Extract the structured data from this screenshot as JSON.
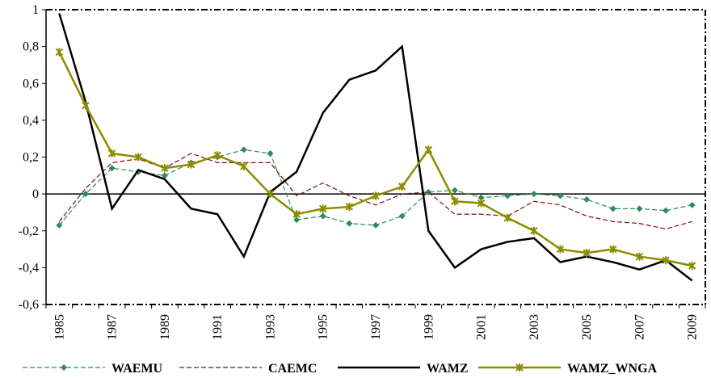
{
  "chart_data": {
    "type": "line",
    "categories": [
      "1985",
      null,
      "1987",
      null,
      "1989",
      null,
      "1991",
      null,
      "1993",
      null,
      "1995",
      null,
      "1997",
      null,
      "1999",
      null,
      "2001",
      null,
      "2003",
      null,
      "2005",
      null,
      "2007",
      null,
      "2009"
    ],
    "ylim": [
      -0.6,
      1
    ],
    "yticks": [
      {
        "value": -0.6,
        "label": "-0,6"
      },
      {
        "value": -0.4,
        "label": "-0,4"
      },
      {
        "value": -0.2,
        "label": "-0,2"
      },
      0,
      {
        "value": 0.2,
        "label": "0,2"
      },
      {
        "value": 0.4,
        "label": "0,4"
      },
      {
        "value": 0.6,
        "label": "0,6"
      },
      {
        "value": 0.8,
        "label": "0,8"
      },
      1
    ],
    "legend": "bottom",
    "series": [
      {
        "name": "WAEMU",
        "color": "#2e8b57",
        "line_style": "dashed",
        "marker": "diamond",
        "values": [
          -0.17,
          0.0,
          0.14,
          0.12,
          0.1,
          0.17,
          0.2,
          0.24,
          0.22,
          -0.14,
          -0.12,
          -0.16,
          -0.17,
          -0.12,
          0.01,
          0.02,
          -0.02,
          -0.01,
          0.0,
          -0.01,
          -0.03,
          -0.08,
          -0.08,
          -0.09,
          -0.06
        ]
      },
      {
        "name": "CAEMC",
        "color": "#7b1010",
        "line_style": "dashed",
        "values": [
          -0.15,
          0.03,
          0.17,
          0.19,
          0.14,
          0.22,
          0.17,
          0.17,
          0.17,
          -0.01,
          0.06,
          -0.01,
          -0.06,
          0.0,
          0.01,
          -0.11,
          -0.11,
          -0.12,
          -0.04,
          -0.06,
          -0.12,
          -0.15,
          -0.16,
          -0.19,
          -0.15
        ]
      },
      {
        "name": "WAMZ",
        "color": "#000000",
        "line_style": "solid",
        "values": [
          0.98,
          0.5,
          -0.08,
          0.13,
          0.08,
          -0.08,
          -0.11,
          -0.34,
          0.01,
          0.12,
          0.44,
          0.62,
          0.67,
          0.8,
          -0.2,
          -0.4,
          -0.3,
          -0.26,
          -0.24,
          -0.37,
          -0.34,
          -0.37,
          -0.41,
          -0.36,
          -0.47
        ]
      },
      {
        "name": "WAMZ_WNGA",
        "color": "#8c8c00",
        "line_style": "solid",
        "marker": "star",
        "values": [
          0.77,
          0.48,
          0.22,
          0.2,
          0.14,
          0.16,
          0.21,
          0.15,
          0.0,
          -0.11,
          -0.08,
          -0.07,
          -0.01,
          0.04,
          0.24,
          -0.04,
          -0.05,
          -0.13,
          -0.2,
          -0.3,
          -0.32,
          -0.3,
          -0.34,
          -0.36,
          -0.39
        ]
      }
    ]
  }
}
